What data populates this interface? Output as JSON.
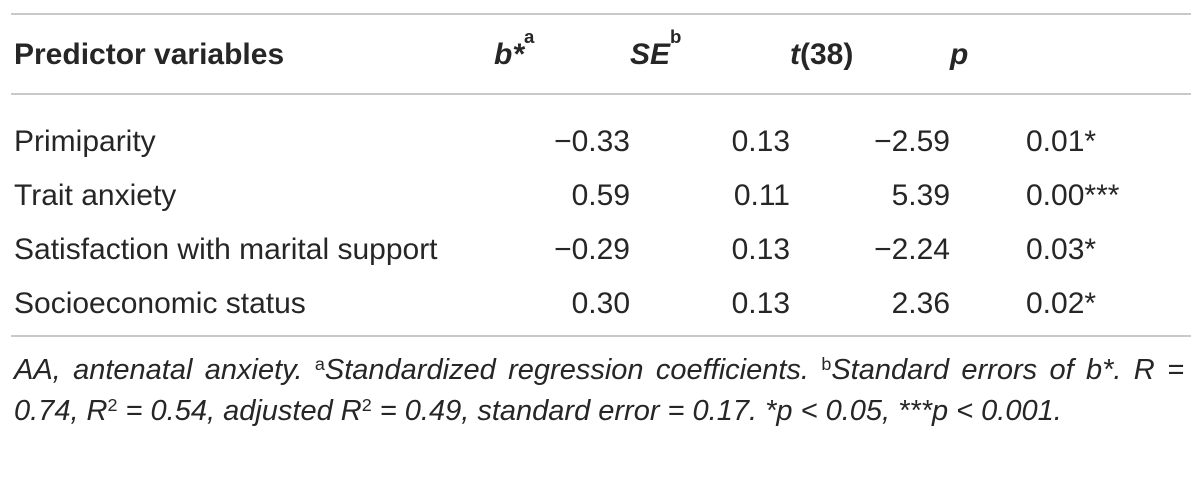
{
  "table": {
    "headers": {
      "predictor": "Predictor variables",
      "b": "b*",
      "b_sup": "a",
      "se": "SE",
      "se_sup": "b",
      "t_italic": "t",
      "t_rest": "(38)",
      "p": "p"
    },
    "rows": [
      {
        "predictor": "Primiparity",
        "b": "−0.33",
        "se": "0.13",
        "t": "−2.59",
        "p": "0.01*"
      },
      {
        "predictor": "Trait anxiety",
        "b": "0.59",
        "se": "0.11",
        "t": "5.39",
        "p": "0.00***"
      },
      {
        "predictor": "Satisfaction with marital support",
        "b": "−0.29",
        "se": "0.13",
        "t": "−2.24",
        "p": "0.03*"
      },
      {
        "predictor": "Socioeconomic status",
        "b": "0.30",
        "se": "0.13",
        "t": "2.36",
        "p": "0.02*"
      }
    ]
  },
  "note": {
    "part1": "AA, antenatal anxiety. ",
    "sup_a": "a",
    "part2": "Standardized regression coefficients. ",
    "sup_b": "b",
    "part3": "Standard errors of b*. R = 0.74, R",
    "sup_2a": "2",
    "part4": " = 0.54, adjusted R",
    "sup_2b": "2",
    "part5": " = 0.49, standard error = 0.17. *p < 0.05, ***p < 0.001."
  }
}
